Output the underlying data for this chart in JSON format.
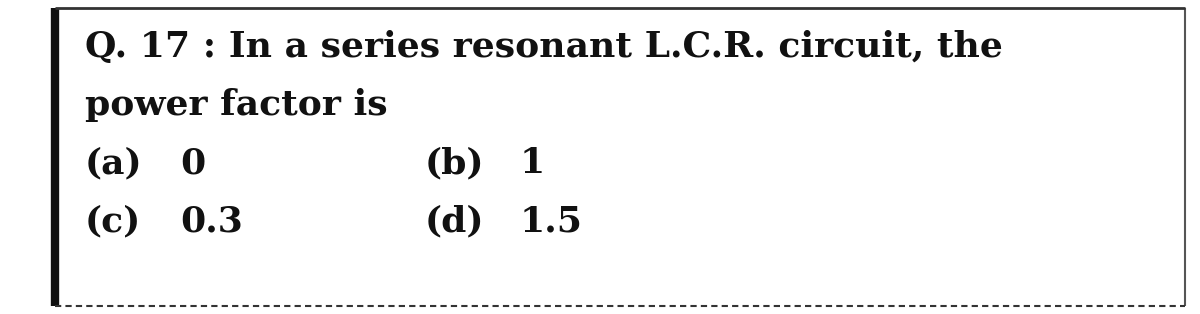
{
  "bg_color": "#ffffff",
  "text_color": "#111111",
  "left_thick_border_color": "#111111",
  "right_border_color": "#555555",
  "top_border_color": "#333333",
  "bottom_border_color": "#333333",
  "line1": "Q. 17 : In a series resonant L.C.R. circuit, the",
  "line2": "power factor is",
  "opt_a_label": "(a)",
  "opt_a_val": "0",
  "opt_b_label": "(b)",
  "opt_b_val": "1",
  "opt_c_label": "(c)",
  "opt_c_val": "0.3",
  "opt_d_label": "(d)",
  "opt_d_val": "1.5",
  "font_size_question": 26,
  "font_size_options": 26,
  "font_weight": "bold",
  "font_family": "serif",
  "fig_width": 12.0,
  "fig_height": 3.14,
  "dpi": 100
}
